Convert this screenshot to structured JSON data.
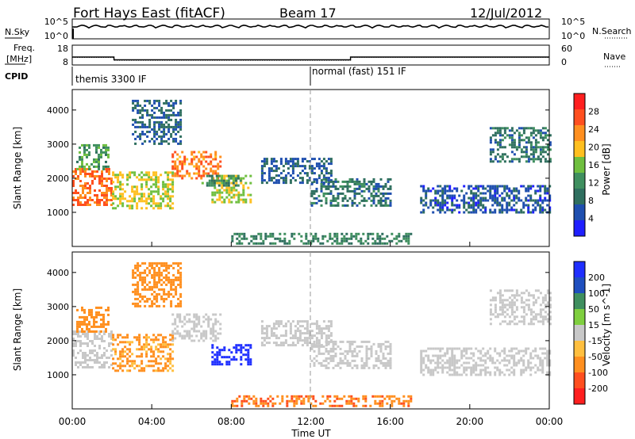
{
  "header": {
    "station": "Fort Hays East (fitACF)",
    "beam": "Beam 17",
    "date": "12/Jul/2012"
  },
  "noise_panel": {
    "left_label": "N.Sky",
    "right_label": "N.Search",
    "left_ticks": [
      "10^5",
      "10^0"
    ],
    "right_ticks": [
      "10^5",
      "10^0"
    ]
  },
  "freq_panel": {
    "left_label_top": "Freq.",
    "left_label_bottom": "[MHz]",
    "left_ticks": [
      "18",
      "8"
    ],
    "right_label": "Nave",
    "right_ticks": [
      "60",
      "0"
    ],
    "freq_mhz_steps": [
      {
        "start_ut": 0.0,
        "end_ut": 2.1,
        "freq": 12.0
      },
      {
        "start_ut": 2.1,
        "end_ut": 14.0,
        "freq": 10.6
      },
      {
        "start_ut": 14.0,
        "end_ut": 24.0,
        "freq": 12.0
      }
    ],
    "nave_steps": [
      {
        "start_ut": 0.0,
        "end_ut": 2.1,
        "nave": 23
      },
      {
        "start_ut": 2.1,
        "end_ut": 14.0,
        "nave": 14
      },
      {
        "start_ut": 14.0,
        "end_ut": 24.0,
        "nave": 23
      }
    ]
  },
  "cpid": {
    "label": "CPID",
    "modes": [
      {
        "text": "themis 3300 IF",
        "start_ut": 0.0
      },
      {
        "text": "normal (fast) 151 IF",
        "start_ut": 12.0
      }
    ]
  },
  "chart_data": [
    {
      "type": "heatmap",
      "name": "Power",
      "ylabel": "Slant Range [km]",
      "ylim": [
        0,
        4600
      ],
      "xlim_hours": [
        0,
        24
      ],
      "yticks": [
        1000,
        2000,
        3000,
        4000
      ],
      "colorbar": {
        "label": "Power [dB]",
        "ticks": [
          4,
          8,
          12,
          16,
          20,
          24,
          28
        ]
      },
      "regions": [
        {
          "t0": 0.0,
          "t1": 2.0,
          "r0": 1200,
          "r1": 2300,
          "level": 26
        },
        {
          "t0": 0.2,
          "t1": 1.8,
          "r0": 2300,
          "r1": 3000,
          "level": 12
        },
        {
          "t0": 2.0,
          "t1": 5.0,
          "r0": 1100,
          "r1": 2200,
          "level": 18
        },
        {
          "t0": 3.0,
          "t1": 5.5,
          "r0": 3000,
          "r1": 4300,
          "level": 6
        },
        {
          "t0": 5.0,
          "t1": 7.5,
          "r0": 2000,
          "r1": 2800,
          "level": 25
        },
        {
          "t0": 7.0,
          "t1": 9.0,
          "r0": 1300,
          "r1": 2100,
          "level": 18
        },
        {
          "t0": 6.5,
          "t1": 8.5,
          "r0": 1800,
          "r1": 2100,
          "level": 11
        },
        {
          "t0": 9.5,
          "t1": 13.0,
          "r0": 1900,
          "r1": 2600,
          "level": 6
        },
        {
          "t0": 12.0,
          "t1": 16.0,
          "r0": 1200,
          "r1": 2000,
          "level": 8
        },
        {
          "t0": 17.5,
          "t1": 24.0,
          "r0": 1000,
          "r1": 1800,
          "level": 5
        },
        {
          "t0": 21.0,
          "t1": 24.0,
          "r0": 2500,
          "r1": 3500,
          "level": 8
        },
        {
          "t0": 8.0,
          "t1": 17.0,
          "r0": 100,
          "r1": 400,
          "level": 10
        }
      ]
    },
    {
      "type": "heatmap",
      "name": "Velocity",
      "ylabel": "Slant Range [km]",
      "ylim": [
        0,
        4600
      ],
      "xlim_hours": [
        0,
        24
      ],
      "yticks": [
        1000,
        2000,
        3000,
        4000
      ],
      "xticks": [
        "00:00",
        "04:00",
        "08:00",
        "12:00",
        "16:00",
        "20:00",
        "00:00"
      ],
      "xlabel": "Time UT",
      "colorbar": {
        "label": "Velocity [m s^-1]",
        "ticks": [
          "200",
          "100",
          "50",
          "15",
          "-15",
          "-50",
          "-100",
          "-200"
        ]
      },
      "regions": [
        {
          "t0": 0.0,
          "t1": 2.0,
          "r0": 1200,
          "r1": 2300,
          "vel": 0
        },
        {
          "t0": 0.2,
          "t1": 1.8,
          "r0": 2300,
          "r1": 3000,
          "vel": -60
        },
        {
          "t0": 2.0,
          "t1": 5.0,
          "r0": 1100,
          "r1": 2200,
          "vel": -40
        },
        {
          "t0": 3.0,
          "t1": 5.5,
          "r0": 3000,
          "r1": 4300,
          "vel": -60
        },
        {
          "t0": 5.0,
          "t1": 7.5,
          "r0": 2000,
          "r1": 2800,
          "vel": 0
        },
        {
          "t0": 7.0,
          "t1": 9.0,
          "r0": 1300,
          "r1": 1900,
          "vel": 180
        },
        {
          "t0": 9.5,
          "t1": 13.0,
          "r0": 1900,
          "r1": 2600,
          "vel": 0
        },
        {
          "t0": 12.0,
          "t1": 16.0,
          "r0": 1200,
          "r1": 2000,
          "vel": 0
        },
        {
          "t0": 17.5,
          "t1": 24.0,
          "r0": 1000,
          "r1": 1800,
          "vel": 0
        },
        {
          "t0": 21.0,
          "t1": 24.0,
          "r0": 2500,
          "r1": 3500,
          "vel": 0
        },
        {
          "t0": 8.0,
          "t1": 17.0,
          "r0": 100,
          "r1": 400,
          "vel": -70
        }
      ]
    }
  ],
  "colors": {
    "power_scale": [
      "#1f1fff",
      "#1f4faf",
      "#2f6f5f",
      "#3f8f5f",
      "#6fbf3f",
      "#ffbf1f",
      "#ff8f1f",
      "#ff4f1f",
      "#ff1f1f"
    ],
    "velocity_scale": [
      "#1f2fff",
      "#1f4fbf",
      "#3f8f5f",
      "#7fcf3f",
      "#c8c8c8",
      "#ffbf3f",
      "#ff8f1f",
      "#ff4f1f",
      "#ff1f1f"
    ],
    "axis": "#000000"
  }
}
